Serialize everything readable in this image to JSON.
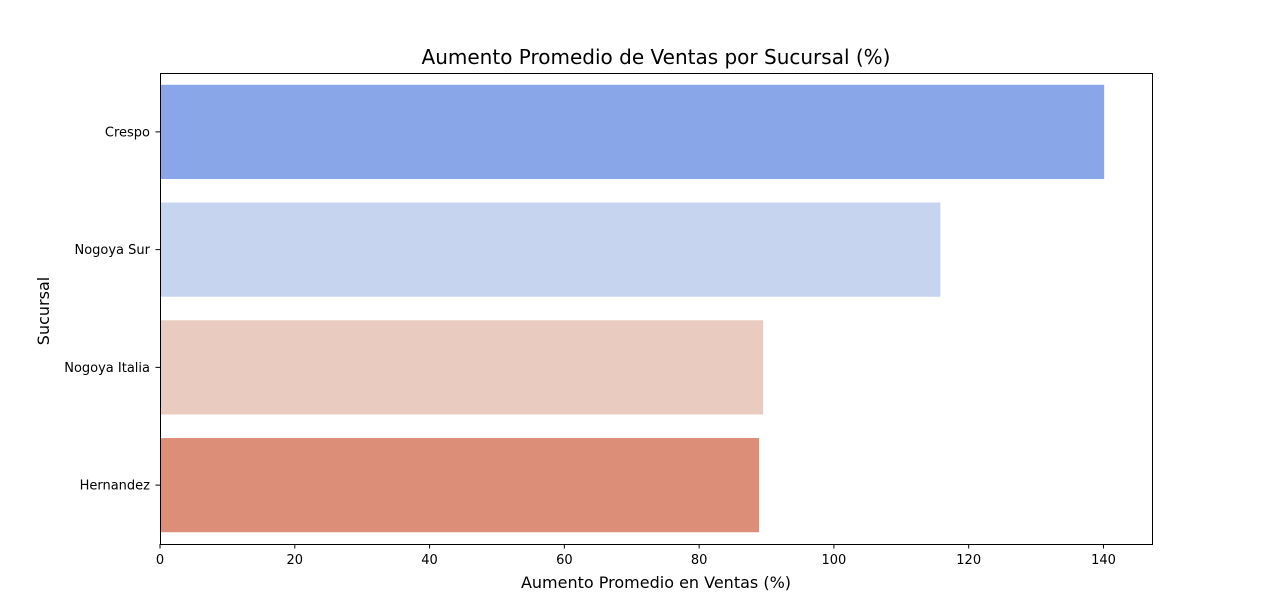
{
  "chart_data": {
    "type": "bar",
    "orientation": "horizontal",
    "title": "Aumento Promedio de Ventas por Sucursal (%)",
    "xlabel": "Aumento Promedio en Ventas (%)",
    "ylabel": "Sucursal",
    "categories": [
      "Crespo",
      "Nogoya Sur",
      "Nogoya Italia",
      "Hernandez"
    ],
    "values": [
      140.1,
      115.8,
      89.5,
      88.9
    ],
    "colors": [
      "#88a6e8",
      "#c6d4ef",
      "#e9ccbf",
      "#dc8e78"
    ],
    "xlim": [
      0,
      147.2
    ],
    "xticks": [
      0,
      20,
      40,
      60,
      80,
      100,
      120,
      140
    ],
    "grid": false,
    "legend": "none"
  }
}
